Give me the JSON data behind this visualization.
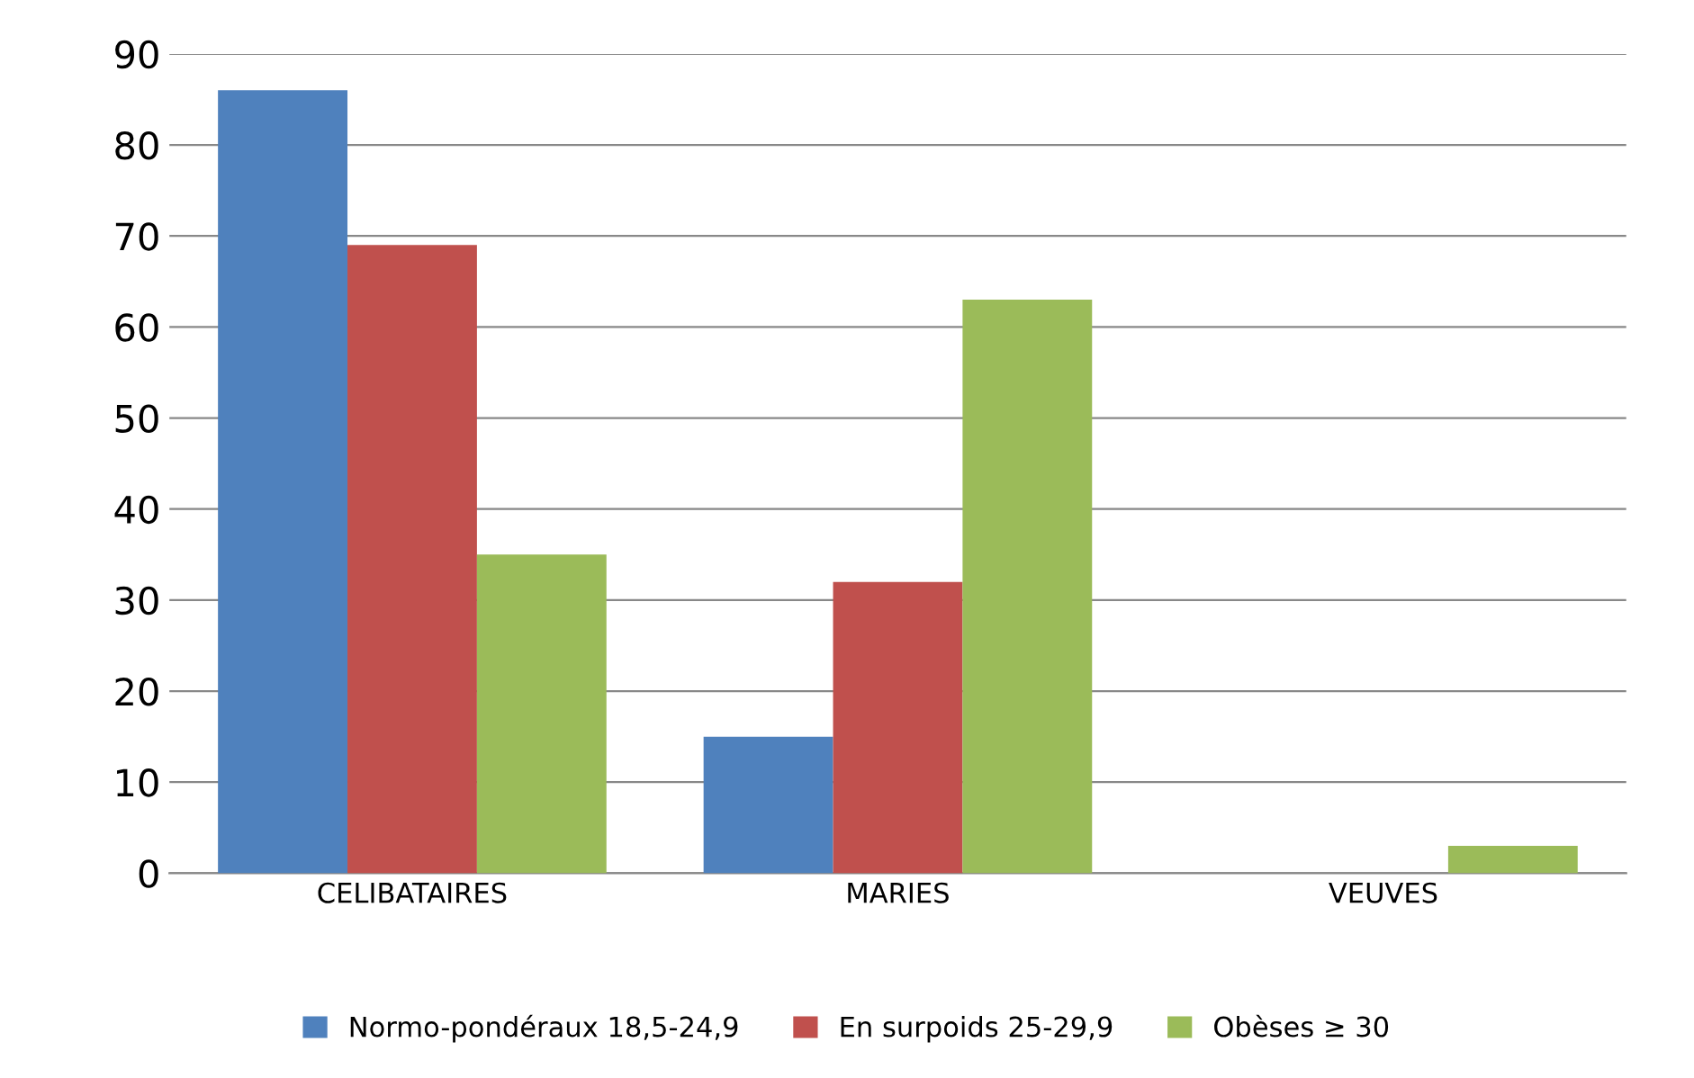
{
  "chart_data": {
    "type": "bar",
    "categories": [
      "CELIBATAIRES",
      "MARIES",
      "VEUVES"
    ],
    "series": [
      {
        "name": "Normo-pondéraux 18,5-24,9",
        "color": "#4f81bd",
        "values": [
          86,
          15,
          0
        ]
      },
      {
        "name": "En surpoids 25-29,9",
        "color": "#c0504d",
        "values": [
          69,
          32,
          0
        ]
      },
      {
        "name": "Obèses ≥ 30",
        "color": "#9bbb59",
        "values": [
          35,
          63,
          3
        ]
      }
    ],
    "ylim": [
      0,
      90
    ],
    "yticks": [
      0,
      10,
      20,
      30,
      40,
      50,
      60,
      70,
      80,
      90
    ],
    "grid": "y",
    "legend": "bottom"
  }
}
